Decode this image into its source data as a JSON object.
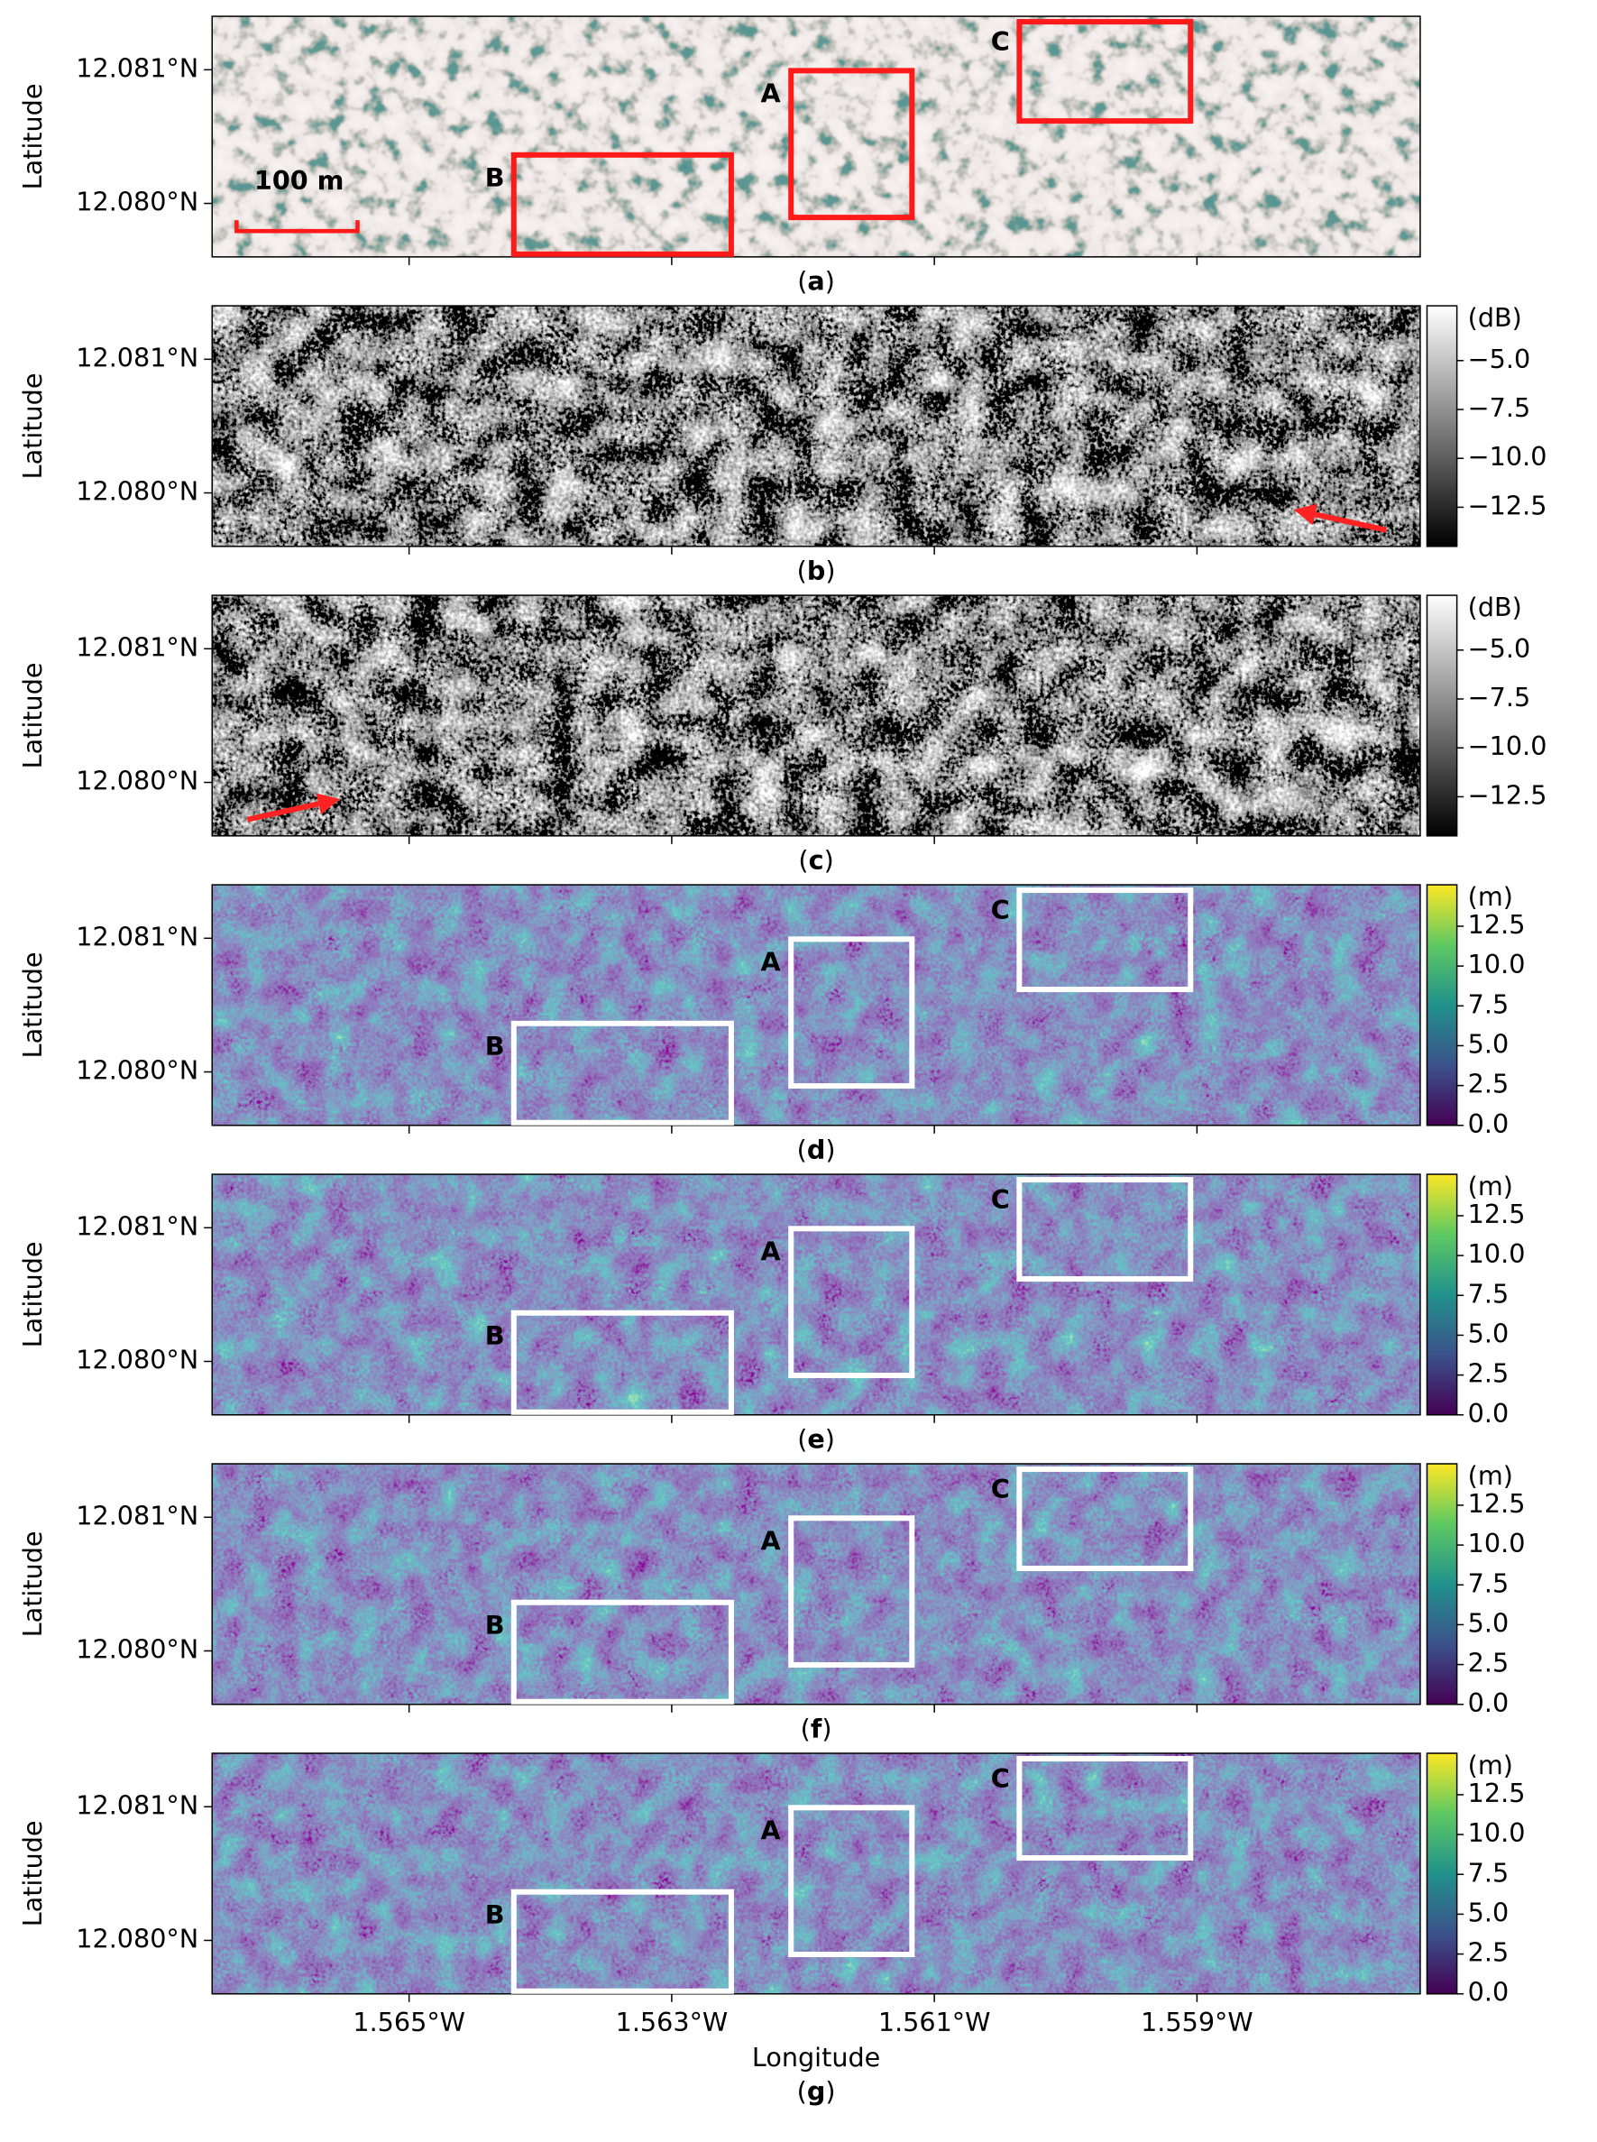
{
  "chart_data": [
    {
      "type": "image",
      "colormap": "rgb",
      "caption": "(a)",
      "ylabel": "Latitude",
      "xlim": [
        -1.5665,
        -1.5573
      ],
      "ylim": [
        12.0796,
        12.0814
      ],
      "xticks": [
        -1.565,
        -1.563,
        -1.561,
        -1.559
      ],
      "yticks": [
        {
          "value": 12.081,
          "label": "12.081°N"
        },
        {
          "value": 12.08,
          "label": "12.080°N"
        }
      ],
      "annotation_color": "#ff1a1a",
      "annotations": [
        "A",
        "B",
        "C",
        "100 m"
      ]
    },
    {
      "type": "image",
      "colormap": "gray",
      "caption": "(b)",
      "ylabel": "Latitude",
      "xlim": [
        -1.5665,
        -1.5573
      ],
      "ylim": [
        12.0796,
        12.0814
      ],
      "xticks": [
        -1.565,
        -1.563,
        -1.561,
        -1.559
      ],
      "yticks": [
        {
          "value": 12.081,
          "label": "12.081°N"
        },
        {
          "value": 12.08,
          "label": "12.080°N"
        }
      ],
      "colorbar": {
        "label": "(dB)",
        "lim": [
          -14.5,
          -2.2
        ],
        "ticks": [
          {
            "value": -5,
            "label": "−5.0"
          },
          {
            "value": -7.5,
            "label": "−7.5"
          },
          {
            "value": -10,
            "label": "−10.0"
          },
          {
            "value": -12.5,
            "label": "−12.5"
          }
        ]
      }
    },
    {
      "type": "image",
      "colormap": "gray",
      "caption": "(c)",
      "ylabel": "Latitude",
      "xlim": [
        -1.5665,
        -1.5573
      ],
      "ylim": [
        12.0796,
        12.0814
      ],
      "xticks": [
        -1.565,
        -1.563,
        -1.561,
        -1.559
      ],
      "yticks": [
        {
          "value": 12.081,
          "label": "12.081°N"
        },
        {
          "value": 12.08,
          "label": "12.080°N"
        }
      ],
      "colorbar": {
        "label": "(dB)",
        "lim": [
          -14.5,
          -2.2
        ],
        "ticks": [
          {
            "value": -5,
            "label": "−5.0"
          },
          {
            "value": -7.5,
            "label": "−7.5"
          },
          {
            "value": -10,
            "label": "−10.0"
          },
          {
            "value": -12.5,
            "label": "−12.5"
          }
        ]
      }
    },
    {
      "type": "image",
      "colormap": "viridis",
      "caption": "(d)",
      "ylabel": "Latitude",
      "xlim": [
        -1.5665,
        -1.5573
      ],
      "ylim": [
        12.0796,
        12.0814
      ],
      "xticks": [
        -1.565,
        -1.563,
        -1.561,
        -1.559
      ],
      "yticks": [
        {
          "value": 12.081,
          "label": "12.081°N"
        },
        {
          "value": 12.08,
          "label": "12.080°N"
        }
      ],
      "annotation_color": "#ffffff",
      "annotations": [
        "A",
        "B",
        "C"
      ],
      "colorbar": {
        "label": "(m)",
        "lim": [
          0,
          15.1
        ],
        "ticks": [
          {
            "value": 0,
            "label": "0.0"
          },
          2.5,
          {
            "value": 5,
            "label": "5.0"
          },
          7.5,
          {
            "value": 10,
            "label": "10.0"
          },
          12.5
        ]
      }
    },
    {
      "type": "image",
      "colormap": "viridis",
      "caption": "(e)",
      "ylabel": "Latitude",
      "xlim": [
        -1.5665,
        -1.5573
      ],
      "ylim": [
        12.0796,
        12.0814
      ],
      "xticks": [
        -1.565,
        -1.563,
        -1.561,
        -1.559
      ],
      "yticks": [
        {
          "value": 12.081,
          "label": "12.081°N"
        },
        {
          "value": 12.08,
          "label": "12.080°N"
        }
      ],
      "annotation_color": "#ffffff",
      "annotations": [
        "A",
        "B",
        "C"
      ],
      "colorbar": {
        "label": "(m)",
        "lim": [
          0,
          15.1
        ],
        "ticks": [
          {
            "value": 0,
            "label": "0.0"
          },
          2.5,
          {
            "value": 5,
            "label": "5.0"
          },
          7.5,
          {
            "value": 10,
            "label": "10.0"
          },
          12.5
        ]
      }
    },
    {
      "type": "image",
      "colormap": "viridis",
      "caption": "(f)",
      "ylabel": "Latitude",
      "xlim": [
        -1.5665,
        -1.5573
      ],
      "ylim": [
        12.0796,
        12.0814
      ],
      "xticks": [
        -1.565,
        -1.563,
        -1.561,
        -1.559
      ],
      "yticks": [
        {
          "value": 12.081,
          "label": "12.081°N"
        },
        {
          "value": 12.08,
          "label": "12.080°N"
        }
      ],
      "annotation_color": "#ffffff",
      "annotations": [
        "A",
        "B",
        "C"
      ],
      "colorbar": {
        "label": "(m)",
        "lim": [
          0,
          15.1
        ],
        "ticks": [
          {
            "value": 0,
            "label": "0.0"
          },
          2.5,
          {
            "value": 5,
            "label": "5.0"
          },
          7.5,
          {
            "value": 10,
            "label": "10.0"
          },
          12.5
        ]
      }
    },
    {
      "type": "image",
      "colormap": "viridis",
      "caption": "(g)",
      "ylabel": "Latitude",
      "xlabel": "Longitude",
      "xlim": [
        -1.5665,
        -1.5573
      ],
      "ylim": [
        12.0796,
        12.0814
      ],
      "xticks": [
        {
          "value": -1.565,
          "label": "1.565°W"
        },
        {
          "value": -1.563,
          "label": "1.563°W"
        },
        {
          "value": -1.561,
          "label": "1.561°W"
        },
        {
          "value": -1.559,
          "label": "1.559°W"
        }
      ],
      "yticks": [
        {
          "value": 12.081,
          "label": "12.081°N"
        },
        {
          "value": 12.08,
          "label": "12.080°N"
        }
      ],
      "annotation_color": "#ffffff",
      "annotations": [
        "A",
        "B",
        "C"
      ],
      "colorbar": {
        "label": "(m)",
        "lim": [
          0,
          15.1
        ],
        "ticks": [
          {
            "value": 0,
            "label": "0.0"
          },
          2.5,
          {
            "value": 5,
            "label": "5.0"
          },
          7.5,
          {
            "value": 10,
            "label": "10.0"
          },
          12.5
        ]
      }
    }
  ]
}
